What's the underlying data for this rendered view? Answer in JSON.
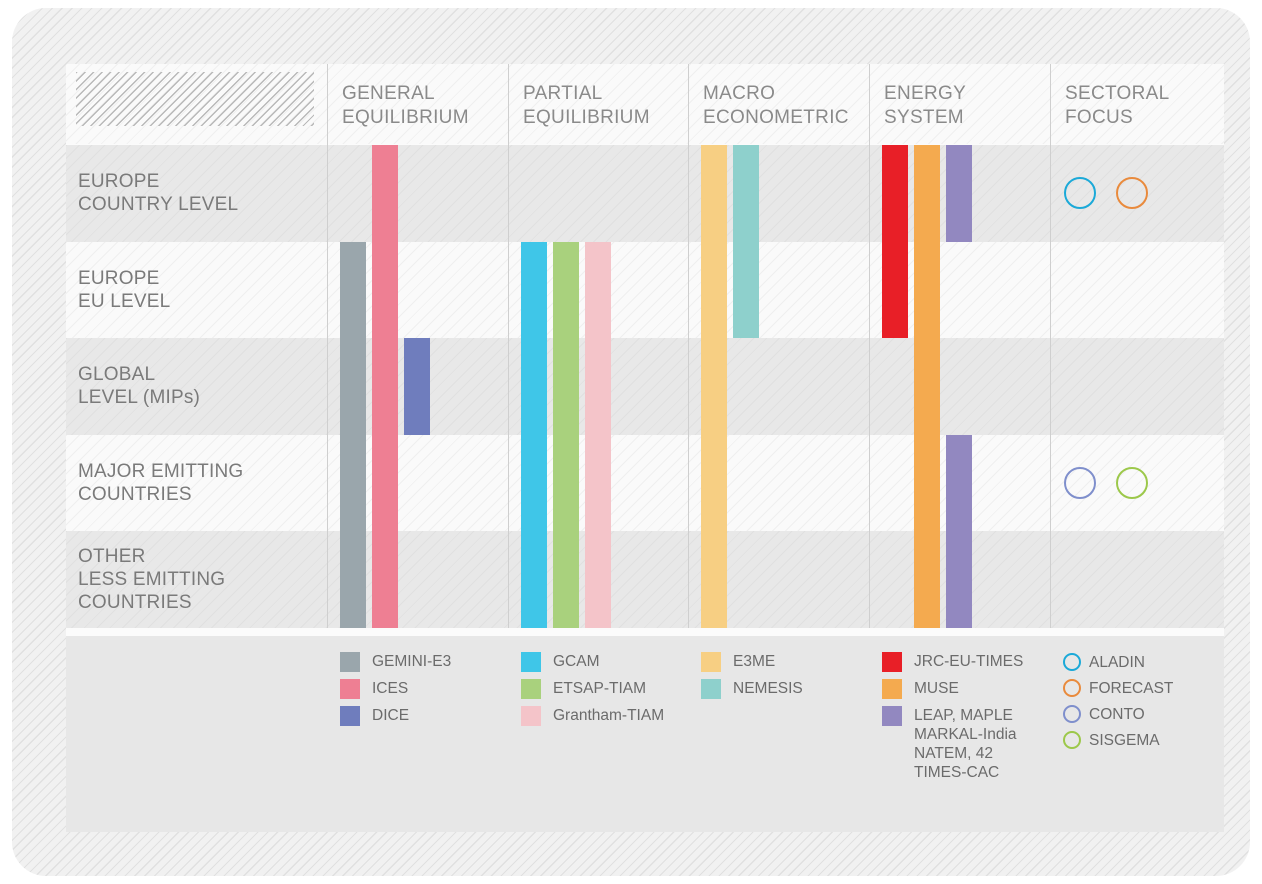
{
  "columns": [
    {
      "title": "GENERAL\nEQUILIBRIUM"
    },
    {
      "title": "PARTIAL\nEQUILIBRIUM"
    },
    {
      "title": "MACRO\nECONOMETRIC"
    },
    {
      "title": "ENERGY\nSYSTEM"
    },
    {
      "title": "SECTORAL\nFOCUS"
    }
  ],
  "rows": [
    {
      "label": "EUROPE\nCOUNTRY LEVEL"
    },
    {
      "label": "EUROPE\nEU LEVEL"
    },
    {
      "label": "GLOBAL\nLEVEL (MIPs)"
    },
    {
      "label": "MAJOR EMITTING\nCOUNTRIES"
    },
    {
      "label": "OTHER\nLESS EMITTING\nCOUNTRIES"
    }
  ],
  "models": [
    {
      "name": "GEMINI-E3",
      "color": "#9aa6ac",
      "column": 0,
      "slot": 0,
      "rows": [
        1,
        4
      ]
    },
    {
      "name": "ICES",
      "color": "#ee7f93",
      "column": 0,
      "slot": 1,
      "rows": [
        0,
        4
      ]
    },
    {
      "name": "DICE",
      "color": "#6f7dbd",
      "column": 0,
      "slot": 2,
      "rows": [
        2,
        2
      ]
    },
    {
      "name": "GCAM",
      "color": "#3fc6e8",
      "column": 1,
      "slot": 0,
      "rows": [
        1,
        4
      ]
    },
    {
      "name": "ETSAP-TIAM",
      "color": "#a9d17d",
      "column": 1,
      "slot": 1,
      "rows": [
        1,
        4
      ]
    },
    {
      "name": "Grantham-TIAM",
      "color": "#f4c4c9",
      "column": 1,
      "slot": 2,
      "rows": [
        1,
        4
      ]
    },
    {
      "name": "E3ME",
      "color": "#f7cf83",
      "column": 2,
      "slot": 0,
      "rows": [
        0,
        4
      ]
    },
    {
      "name": "NEMESIS",
      "color": "#8ed0cc",
      "column": 2,
      "slot": 1,
      "rows": [
        0,
        1
      ]
    },
    {
      "name": "JRC-EU-TIMES",
      "color": "#e81f27",
      "column": 3,
      "slot": 0,
      "rows": [
        0,
        1
      ]
    },
    {
      "name": "MUSE",
      "color": "#f4aa4f",
      "column": 3,
      "slot": 1,
      "rows": [
        0,
        4
      ]
    },
    {
      "name": "LEAP, MAPLE\nMARKAL-India\nNATEM, 42\nTIMES-CAC",
      "color": "#9288c0",
      "column": 3,
      "slot": 2,
      "rows": [
        0,
        0
      ]
    },
    {
      "name": "",
      "color": "#9288c0",
      "column": 3,
      "slot": 2,
      "rows": [
        3,
        4
      ],
      "continuation": true
    }
  ],
  "sectoral": [
    {
      "name": "ALADIN",
      "color": "#1ba9d8",
      "row": 0,
      "slot": 0
    },
    {
      "name": "FORECAST",
      "color": "#e98a3c",
      "row": 0,
      "slot": 1
    },
    {
      "name": "CONTO",
      "color": "#7f8fcc",
      "row": 3,
      "slot": 0
    },
    {
      "name": "SISGEMA",
      "color": "#9cc84a",
      "row": 3,
      "slot": 1
    }
  ]
}
